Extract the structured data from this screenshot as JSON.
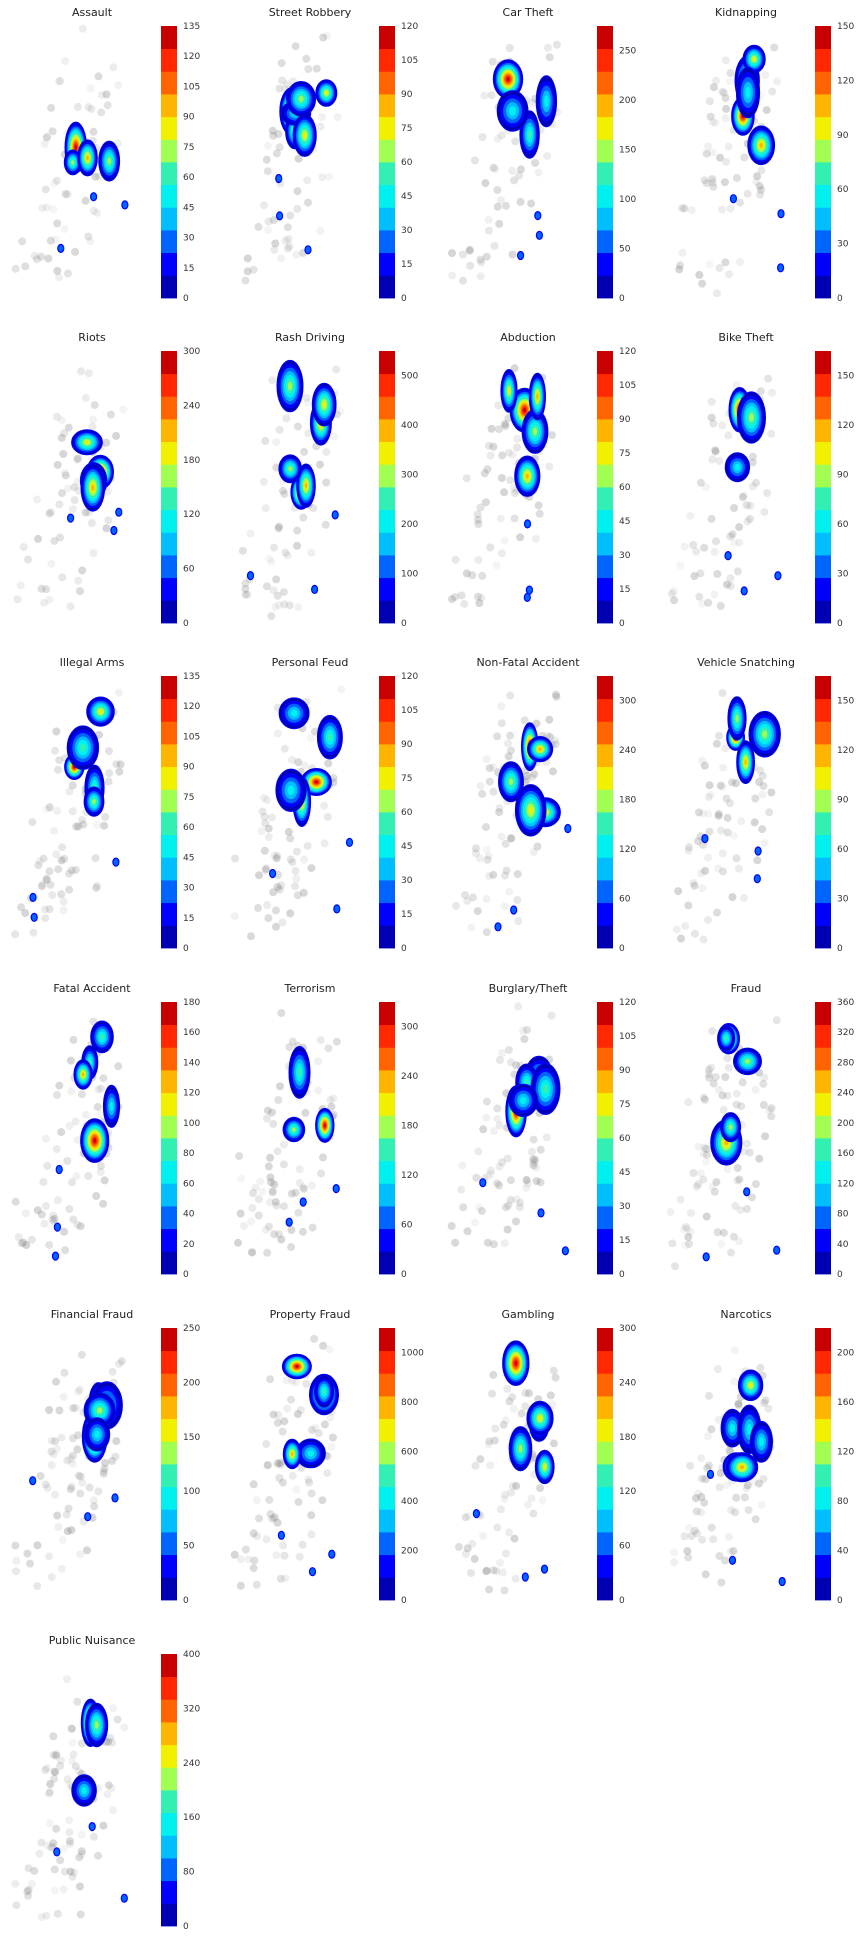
{
  "colors": {
    "cmap": [
      "#0000b2",
      "#0000ff",
      "#0064ff",
      "#00beff",
      "#00f0f0",
      "#32f0b4",
      "#a0ff50",
      "#f0f000",
      "#ffb400",
      "#ff6400",
      "#ff2800",
      "#c80000"
    ],
    "cmap_short": [
      "#0000b2",
      "#0000ff",
      "#0064ff",
      "#00beff",
      "#00f0f0",
      "#32f0b4",
      "#a0ff50",
      "#f0f000",
      "#ffb400",
      "#ff2800",
      "#c80000"
    ],
    "background_points": "#808080"
  },
  "chart_data": [
    {
      "type": "heatmap",
      "title": "Assault",
      "colorbar": {
        "max": 135,
        "ticks": [
          "0",
          "15",
          "30",
          "45",
          "60",
          "75",
          "90",
          "105",
          "120",
          "135"
        ]
      }
    },
    {
      "type": "heatmap",
      "title": "Street Robbery",
      "colorbar": {
        "max": 120,
        "ticks": [
          "0",
          "15",
          "30",
          "45",
          "60",
          "75",
          "90",
          "105",
          "120"
        ]
      }
    },
    {
      "type": "heatmap",
      "title": "Car Theft",
      "colorbar": {
        "max": 275,
        "ticks": [
          "0",
          "50",
          "100",
          "150",
          "200",
          "250"
        ]
      }
    },
    {
      "type": "heatmap",
      "title": "Kidnapping",
      "colorbar": {
        "max": 150,
        "ticks": [
          "0",
          "30",
          "60",
          "90",
          "120",
          "150"
        ]
      }
    },
    {
      "type": "heatmap",
      "title": "Riots",
      "colorbar": {
        "max": 300,
        "ticks": [
          "0",
          "60",
          "120",
          "180",
          "240",
          "300"
        ]
      }
    },
    {
      "type": "heatmap",
      "title": "Rash Driving",
      "colorbar": {
        "max": 550,
        "ticks": [
          "0",
          "100",
          "200",
          "300",
          "400",
          "500"
        ]
      }
    },
    {
      "type": "heatmap",
      "title": "Abduction",
      "colorbar": {
        "max": 120,
        "ticks": [
          "0",
          "15",
          "30",
          "45",
          "60",
          "75",
          "90",
          "105",
          "120"
        ]
      }
    },
    {
      "type": "heatmap",
      "title": "Bike Theft",
      "colorbar": {
        "max": 165,
        "ticks": [
          "0",
          "30",
          "60",
          "90",
          "120",
          "150"
        ]
      }
    },
    {
      "type": "heatmap",
      "title": "Illegal Arms",
      "colorbar": {
        "max": 135,
        "ticks": [
          "0",
          "15",
          "30",
          "45",
          "60",
          "75",
          "90",
          "105",
          "120",
          "135"
        ]
      }
    },
    {
      "type": "heatmap",
      "title": "Personal Feud",
      "colorbar": {
        "max": 120,
        "ticks": [
          "0",
          "15",
          "30",
          "45",
          "60",
          "75",
          "90",
          "105",
          "120"
        ]
      }
    },
    {
      "type": "heatmap",
      "title": "Non-Fatal Accident",
      "colorbar": {
        "max": 330,
        "ticks": [
          "0",
          "60",
          "120",
          "180",
          "240",
          "300"
        ]
      }
    },
    {
      "type": "heatmap",
      "title": "Vehicle Snatching",
      "colorbar": {
        "max": 165,
        "ticks": [
          "0",
          "30",
          "60",
          "90",
          "120",
          "150"
        ]
      }
    },
    {
      "type": "heatmap",
      "title": "Fatal Accident",
      "colorbar": {
        "max": 180,
        "ticks": [
          "0",
          "20",
          "40",
          "60",
          "80",
          "100",
          "120",
          "140",
          "160",
          "180"
        ]
      }
    },
    {
      "type": "heatmap",
      "title": "Terrorism",
      "colorbar": {
        "max": 330,
        "ticks": [
          "0",
          "60",
          "120",
          "180",
          "240",
          "300"
        ]
      }
    },
    {
      "type": "heatmap",
      "title": "Burglary/Theft",
      "colorbar": {
        "max": 120,
        "ticks": [
          "0",
          "15",
          "30",
          "45",
          "60",
          "75",
          "90",
          "105",
          "120"
        ]
      }
    },
    {
      "type": "heatmap",
      "title": "Fraud",
      "colorbar": {
        "max": 360,
        "ticks": [
          "0",
          "40",
          "80",
          "120",
          "160",
          "200",
          "240",
          "280",
          "320",
          "360"
        ]
      }
    },
    {
      "type": "heatmap",
      "title": "Financial Fraud",
      "colorbar": {
        "max": 250,
        "ticks": [
          "0",
          "50",
          "100",
          "150",
          "200",
          "250"
        ]
      }
    },
    {
      "type": "heatmap",
      "title": "Property Fraud",
      "colorbar": {
        "max": 1100,
        "ticks": [
          "0",
          "200",
          "400",
          "600",
          "800",
          "1000"
        ]
      }
    },
    {
      "type": "heatmap",
      "title": "Gambling",
      "colorbar": {
        "max": 300,
        "ticks": [
          "0",
          "60",
          "120",
          "180",
          "240",
          "300"
        ]
      }
    },
    {
      "type": "heatmap",
      "title": "Narcotics",
      "colorbar": {
        "max": 220,
        "ticks": [
          "0",
          "40",
          "80",
          "120",
          "160",
          "200"
        ]
      }
    },
    {
      "type": "heatmap",
      "title": "Public Nuisance",
      "colorbar": {
        "max": 400,
        "ticks": [
          "0",
          "80",
          "160",
          "240",
          "320",
          "400"
        ]
      }
    }
  ]
}
